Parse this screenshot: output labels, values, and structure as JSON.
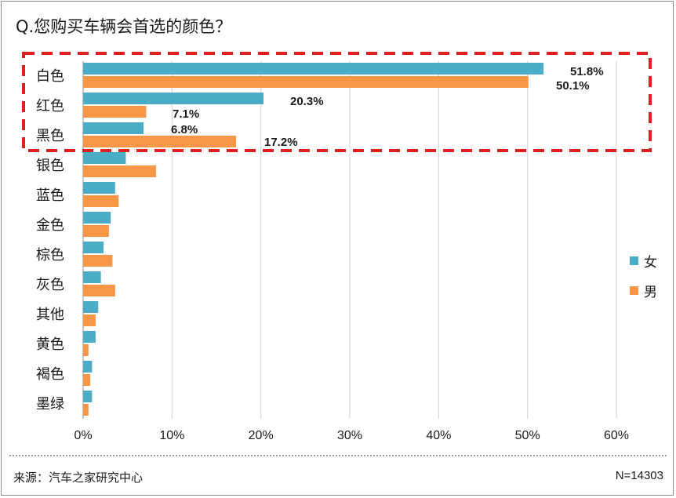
{
  "title": "Q.您购买车辆会首选的颜色？",
  "colors": {
    "female": "#4bacc6",
    "male": "#f79646",
    "highlight": "#e02020",
    "grid": "#d0d0d0"
  },
  "chart_data": {
    "type": "bar",
    "orientation": "horizontal",
    "categories": [
      "白色",
      "红色",
      "黑色",
      "银色",
      "蓝色",
      "金色",
      "棕色",
      "灰色",
      "其他",
      "黄色",
      "褐色",
      "墨绿"
    ],
    "series": [
      {
        "name": "女",
        "values": [
          51.8,
          20.3,
          6.8,
          4.8,
          3.6,
          3.1,
          2.3,
          2.0,
          1.7,
          1.4,
          1.0,
          1.0
        ]
      },
      {
        "name": "男",
        "values": [
          50.1,
          7.1,
          17.2,
          8.2,
          4.0,
          2.9,
          3.3,
          3.6,
          1.4,
          0.6,
          0.8,
          0.6
        ]
      }
    ],
    "data_labels": {
      "女": [
        "51.8%",
        "20.3%",
        "6.8%"
      ],
      "男": [
        "50.1%",
        "7.1%",
        "17.2%"
      ]
    },
    "xlim": [
      0,
      60
    ],
    "xticks": [
      0,
      10,
      20,
      30,
      40,
      50,
      60
    ],
    "xtick_labels": [
      "0%",
      "10%",
      "20%",
      "30%",
      "40%",
      "50%",
      "60%"
    ],
    "grid": true,
    "legend_position": "right",
    "highlighted_categories": [
      "白色",
      "红色",
      "黑色"
    ]
  },
  "legend": {
    "female_label": "女",
    "male_label": "男"
  },
  "footer": {
    "source": "来源：汽车之家研究中心",
    "sample_size": "N=14303"
  }
}
